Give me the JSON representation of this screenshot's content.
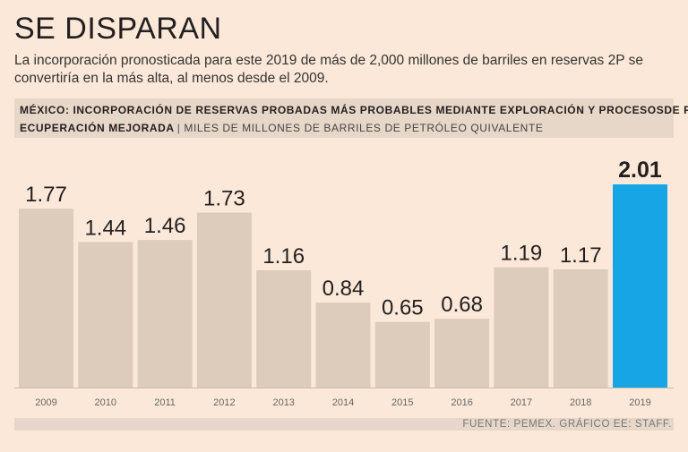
{
  "headline": "SE DISPARAN",
  "subtitle": "La incorporación pronosticada para este 2019 de más de 2,000 millones de barriles en reservas 2P se convertiría en la más alta, al menos desde el 2009.",
  "chart_header": {
    "title_line1": "MÉXICO: INCORPORACIÓN DE RESERVAS PROBADAS MÁS PROBABLES MEDIANTE EXPLORACIÓN Y PROCESOSDE R",
    "title_line2": "ECUPERACIÓN MEJORADA",
    "separator": "|",
    "units": "MILES DE MILLONES DE BARRILES DE PETRÓLEO QUIVALENTE"
  },
  "source": "FUENTE: PEMEX. GRÁFICO EE: STAFF.",
  "colors": {
    "background": "#fbe8d8",
    "bar": "#ddcbbb",
    "highlight": "#16a6e6",
    "panel": "#e7d7c8"
  },
  "chart_data": {
    "type": "bar",
    "title": "MÉXICO: INCORPORACIÓN DE RESERVAS PROBADAS MÁS PROBABLES MEDIANTE EXPLORACIÓN Y PROCESOSDE R ECUPERACIÓN MEJORADA",
    "ylabel": "MILES DE MILLONES DE BARRILES DE PETRÓLEO QUIVALENTE",
    "xlabel": "",
    "categories": [
      "2009",
      "2010",
      "2011",
      "2012",
      "2013",
      "2014",
      "2015",
      "2016",
      "2017",
      "2018",
      "2019"
    ],
    "values": [
      1.77,
      1.44,
      1.46,
      1.73,
      1.16,
      0.84,
      0.65,
      0.68,
      1.19,
      1.17,
      2.01
    ],
    "labels": [
      "1.77",
      "1.44",
      "1.46",
      "1.73",
      "1.16",
      "0.84",
      "0.65",
      "0.68",
      "1.19",
      "1.17",
      "2.01"
    ],
    "highlight_index": 10,
    "ylim": [
      0,
      2.01
    ],
    "grid": false,
    "legend": "none"
  }
}
